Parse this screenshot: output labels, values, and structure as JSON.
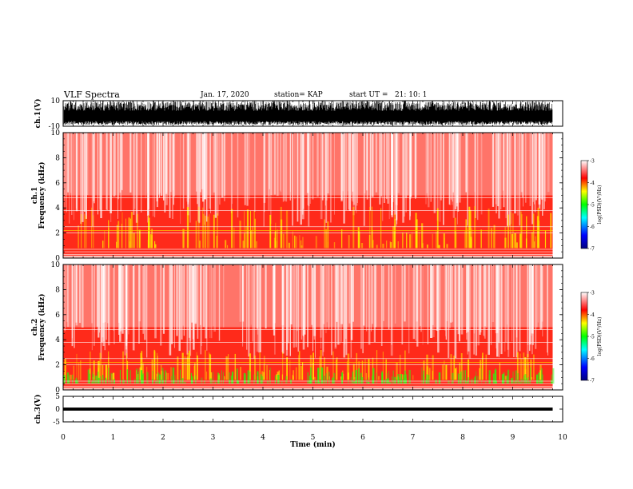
{
  "header": {
    "title": "VLF Spectra",
    "date": "Jan. 17, 2020",
    "station": "station= KAP",
    "start": "start UT =   21: 10: 1"
  },
  "chart_data": [
    {
      "type": "line",
      "name": "ch1-waveform",
      "ylabel": "ch.1(V)",
      "ylim": [
        -10,
        10
      ],
      "y_ticks": [
        "10",
        "-10"
      ],
      "xlim": [
        0,
        10
      ],
      "data_extent_min": 9.8,
      "description_values": {
        "amplitude_typical_V": [
          -7,
          9
        ]
      }
    },
    {
      "type": "heatmap",
      "name": "ch1-spectrogram",
      "ylabel": "ch.1\nFrequency (kHz)",
      "ylabel_lines": [
        "ch.1",
        "Frequency (kHz)"
      ],
      "ylim": [
        0,
        10
      ],
      "y_ticks": [
        "0",
        "2",
        "4",
        "6",
        "8",
        "10"
      ],
      "xlim": [
        0,
        10
      ],
      "colorbar": {
        "label": "log(PSD)(V²/Hz)",
        "ticks": [
          "-3",
          "-4",
          "-5",
          "-6",
          "-7"
        ],
        "range": [
          -7,
          -3
        ]
      }
    },
    {
      "type": "heatmap",
      "name": "ch2-spectrogram",
      "ylabel_lines": [
        "ch.2",
        "Frequency (kHz)"
      ],
      "ylim": [
        0,
        10
      ],
      "y_ticks": [
        "0",
        "2",
        "4",
        "6",
        "8",
        "10"
      ],
      "xlim": [
        0,
        10
      ],
      "colorbar": {
        "label": "log(PSD)(V²/Hz)",
        "ticks": [
          "-3",
          "-4",
          "-5",
          "-6",
          "-7"
        ],
        "range": [
          -7,
          -3
        ]
      }
    },
    {
      "type": "line",
      "name": "ch3-waveform",
      "ylabel": "ch.3(V)",
      "ylim": [
        -5,
        5
      ],
      "y_ticks": [
        "5",
        "0",
        "-5"
      ],
      "xlim": [
        0,
        10
      ],
      "data_extent_min": 9.8,
      "description_values": {
        "band_V": [
          -0.6,
          0.6
        ]
      }
    }
  ],
  "x_axis": {
    "label": "Time (min)",
    "ticks": [
      "0",
      "1",
      "2",
      "3",
      "4",
      "5",
      "6",
      "7",
      "8",
      "9",
      "10"
    ]
  },
  "colors": {
    "spectrogram_high": "#ff0000",
    "spectrogram_mid": "#ffff00",
    "spectrogram_low": "#00ff00",
    "background": "#ffffff",
    "trace": "#000000"
  }
}
